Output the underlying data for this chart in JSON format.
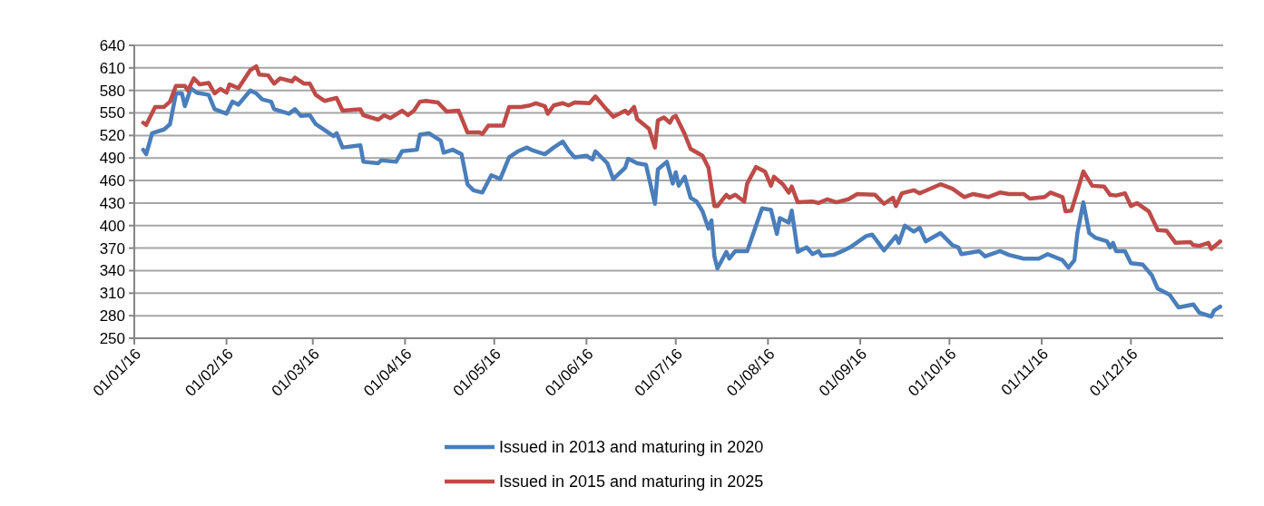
{
  "chart_data": {
    "type": "line",
    "xlim": [
      "2016-01-01",
      "2017-01-01"
    ],
    "xticks": [
      {
        "value": "2016-01-01",
        "label": "01/01/16"
      },
      {
        "value": "2016-02-01",
        "label": "01/02/16"
      },
      {
        "value": "2016-03-01",
        "label": "01/03/16"
      },
      {
        "value": "2016-04-01",
        "label": "01/04/16"
      },
      {
        "value": "2016-05-01",
        "label": "01/05/16"
      },
      {
        "value": "2016-06-01",
        "label": "01/06/16"
      },
      {
        "value": "2016-07-01",
        "label": "01/07/16"
      },
      {
        "value": "2016-08-01",
        "label": "01/08/16"
      },
      {
        "value": "2016-09-01",
        "label": "01/09/16"
      },
      {
        "value": "2016-10-01",
        "label": "01/10/16"
      },
      {
        "value": "2016-11-01",
        "label": "01/11/16"
      },
      {
        "value": "2016-12-01",
        "label": "01/12/16"
      }
    ],
    "ylim": [
      250,
      640
    ],
    "yticks": [
      250,
      280,
      310,
      340,
      370,
      400,
      430,
      460,
      490,
      520,
      550,
      580,
      610,
      640
    ],
    "grid": "y",
    "legend": "bottom",
    "marker": "none",
    "line_style": "solid",
    "series": [
      {
        "name": "Issued in 2013 and maturing in 2020",
        "color": "#4a7ebb",
        "x": [
          "2016-01-04",
          "2016-01-05",
          "2016-01-07",
          "2016-01-11",
          "2016-01-13",
          "2016-01-15",
          "2016-01-17",
          "2016-01-18",
          "2016-01-20",
          "2016-01-22",
          "2016-01-26",
          "2016-01-28",
          "2016-02-01",
          "2016-02-03",
          "2016-02-05",
          "2016-02-09",
          "2016-02-11",
          "2016-02-13",
          "2016-02-16",
          "2016-02-17",
          "2016-02-22",
          "2016-02-24",
          "2016-02-26",
          "2016-02-29",
          "2016-03-02",
          "2016-03-08",
          "2016-03-09",
          "2016-03-11",
          "2016-03-17",
          "2016-03-18",
          "2016-03-23",
          "2016-03-24",
          "2016-03-29",
          "2016-03-31",
          "2016-04-05",
          "2016-04-06",
          "2016-04-09",
          "2016-04-13",
          "2016-04-14",
          "2016-04-17",
          "2016-04-20",
          "2016-04-22",
          "2016-04-24",
          "2016-04-27",
          "2016-04-30",
          "2016-05-03",
          "2016-05-06",
          "2016-05-09",
          "2016-05-12",
          "2016-05-14",
          "2016-05-18",
          "2016-05-21",
          "2016-05-24",
          "2016-05-26",
          "2016-05-28",
          "2016-06-01",
          "2016-06-03",
          "2016-06-04",
          "2016-06-08",
          "2016-06-10",
          "2016-06-14",
          "2016-06-15",
          "2016-06-18",
          "2016-06-21",
          "2016-06-24",
          "2016-06-25",
          "2016-06-28",
          "2016-06-30",
          "2016-07-01",
          "2016-07-02",
          "2016-07-04",
          "2016-07-06",
          "2016-07-08",
          "2016-07-10",
          "2016-07-12",
          "2016-07-13",
          "2016-07-14",
          "2016-07-15",
          "2016-07-18",
          "2016-07-19",
          "2016-07-21",
          "2016-07-25",
          "2016-07-30",
          "2016-08-02",
          "2016-08-04",
          "2016-08-05",
          "2016-08-08",
          "2016-08-09",
          "2016-08-11",
          "2016-08-14",
          "2016-08-16",
          "2016-08-18",
          "2016-08-19",
          "2016-08-23",
          "2016-08-26",
          "2016-08-29",
          "2016-09-03",
          "2016-09-05",
          "2016-09-09",
          "2016-09-13",
          "2016-09-14",
          "2016-09-16",
          "2016-09-19",
          "2016-09-21",
          "2016-09-23",
          "2016-09-28",
          "2016-10-02",
          "2016-10-04",
          "2016-10-05",
          "2016-10-11",
          "2016-10-13",
          "2016-10-18",
          "2016-10-21",
          "2016-10-26",
          "2016-10-31",
          "2016-11-03",
          "2016-11-08",
          "2016-11-10",
          "2016-11-12",
          "2016-11-13",
          "2016-11-15",
          "2016-11-17",
          "2016-11-19",
          "2016-11-23",
          "2016-11-24",
          "2016-11-25",
          "2016-11-26",
          "2016-11-29",
          "2016-12-01",
          "2016-12-05",
          "2016-12-08",
          "2016-12-10",
          "2016-12-14",
          "2016-12-17",
          "2016-12-22",
          "2016-12-24",
          "2016-12-28",
          "2016-12-29",
          "2016-12-31"
        ],
        "values": [
          501,
          495,
          523,
          528,
          535,
          576,
          576,
          559,
          583,
          577,
          574,
          555,
          549,
          565,
          561,
          580,
          576,
          568,
          565,
          555,
          549,
          555,
          546,
          547,
          535,
          519,
          523,
          504,
          507,
          485,
          483,
          487,
          485,
          499,
          501,
          521,
          523,
          513,
          497,
          501,
          495,
          455,
          447,
          444,
          467,
          462,
          491,
          499,
          504,
          500,
          495,
          504,
          512,
          500,
          491,
          493,
          488,
          499,
          483,
          462,
          477,
          489,
          483,
          481,
          429,
          475,
          485,
          456,
          471,
          453,
          465,
          437,
          432,
          419,
          396,
          407,
          359,
          343,
          365,
          356,
          366,
          366,
          423,
          421,
          389,
          410,
          404,
          420,
          365,
          371,
          362,
          366,
          360,
          361,
          366,
          372,
          386,
          388,
          367,
          386,
          377,
          400,
          392,
          397,
          379,
          390,
          374,
          371,
          362,
          366,
          359,
          366,
          361,
          356,
          356,
          362,
          354,
          344,
          354,
          390,
          431,
          390,
          384,
          379,
          371,
          377,
          366,
          366,
          350,
          348,
          334,
          316,
          308,
          291,
          295,
          284,
          279,
          287,
          292
        ]
      },
      {
        "name": "Issued in 2015 and maturing in 2025",
        "color": "#be4b48",
        "x": [
          "2016-01-04",
          "2016-01-05",
          "2016-01-08",
          "2016-01-11",
          "2016-01-13",
          "2016-01-15",
          "2016-01-18",
          "2016-01-19",
          "2016-01-21",
          "2016-01-23",
          "2016-01-26",
          "2016-01-28",
          "2016-01-30",
          "2016-02-01",
          "2016-02-02",
          "2016-02-05",
          "2016-02-09",
          "2016-02-11",
          "2016-02-12",
          "2016-02-15",
          "2016-02-17",
          "2016-02-19",
          "2016-02-23",
          "2016-02-24",
          "2016-02-27",
          "2016-02-29",
          "2016-03-02",
          "2016-03-05",
          "2016-03-09",
          "2016-03-11",
          "2016-03-17",
          "2016-03-18",
          "2016-03-23",
          "2016-03-25",
          "2016-03-27",
          "2016-03-31",
          "2016-04-02",
          "2016-04-04",
          "2016-04-06",
          "2016-04-08",
          "2016-04-12",
          "2016-04-15",
          "2016-04-19",
          "2016-04-22",
          "2016-04-26",
          "2016-04-27",
          "2016-04-29",
          "2016-05-04",
          "2016-05-06",
          "2016-05-10",
          "2016-05-13",
          "2016-05-15",
          "2016-05-18",
          "2016-05-19",
          "2016-05-21",
          "2016-05-24",
          "2016-05-26",
          "2016-05-28",
          "2016-06-02",
          "2016-06-04",
          "2016-06-07",
          "2016-06-10",
          "2016-06-14",
          "2016-06-15",
          "2016-06-17",
          "2016-06-18",
          "2016-06-22",
          "2016-06-24",
          "2016-06-25",
          "2016-06-27",
          "2016-06-29",
          "2016-06-30",
          "2016-07-01",
          "2016-07-04",
          "2016-07-06",
          "2016-07-10",
          "2016-07-12",
          "2016-07-14",
          "2016-07-15",
          "2016-07-18",
          "2016-07-19",
          "2016-07-21",
          "2016-07-24",
          "2016-07-25",
          "2016-07-28",
          "2016-07-31",
          "2016-08-02",
          "2016-08-03",
          "2016-08-06",
          "2016-08-08",
          "2016-08-09",
          "2016-08-11",
          "2016-08-16",
          "2016-08-18",
          "2016-08-21",
          "2016-08-24",
          "2016-08-28",
          "2016-08-31",
          "2016-09-06",
          "2016-09-09",
          "2016-09-12",
          "2016-09-13",
          "2016-09-15",
          "2016-09-19",
          "2016-09-21",
          "2016-09-28",
          "2016-10-02",
          "2016-10-06",
          "2016-10-09",
          "2016-10-14",
          "2016-10-18",
          "2016-10-21",
          "2016-10-26",
          "2016-10-28",
          "2016-11-02",
          "2016-11-04",
          "2016-11-08",
          "2016-11-09",
          "2016-11-11",
          "2016-11-15",
          "2016-11-18",
          "2016-11-22",
          "2016-11-24",
          "2016-11-26",
          "2016-11-29",
          "2016-12-01",
          "2016-12-03",
          "2016-12-07",
          "2016-12-10",
          "2016-12-13",
          "2016-12-16",
          "2016-12-21",
          "2016-12-22",
          "2016-12-24",
          "2016-12-27",
          "2016-12-28",
          "2016-12-31"
        ],
        "values": [
          537,
          534,
          558,
          558,
          565,
          586,
          586,
          580,
          596,
          588,
          590,
          576,
          582,
          577,
          588,
          583,
          607,
          612,
          601,
          600,
          589,
          596,
          592,
          597,
          589,
          589,
          574,
          566,
          570,
          553,
          555,
          547,
          541,
          547,
          543,
          553,
          547,
          553,
          565,
          566,
          564,
          552,
          553,
          524,
          524,
          522,
          533,
          533,
          558,
          558,
          560,
          563,
          559,
          549,
          560,
          563,
          560,
          564,
          563,
          572,
          558,
          545,
          553,
          549,
          558,
          542,
          529,
          504,
          540,
          544,
          537,
          544,
          546,
          522,
          502,
          493,
          477,
          426,
          426,
          441,
          437,
          441,
          432,
          456,
          478,
          472,
          453,
          465,
          455,
          444,
          452,
          431,
          432,
          430,
          435,
          431,
          435,
          442,
          441,
          429,
          437,
          426,
          443,
          447,
          443,
          455,
          449,
          438,
          442,
          438,
          444,
          442,
          442,
          436,
          438,
          444,
          438,
          419,
          420,
          472,
          453,
          452,
          441,
          440,
          443,
          426,
          430,
          419,
          394,
          393,
          377,
          378,
          374,
          373,
          377,
          369,
          379
        ]
      }
    ]
  }
}
